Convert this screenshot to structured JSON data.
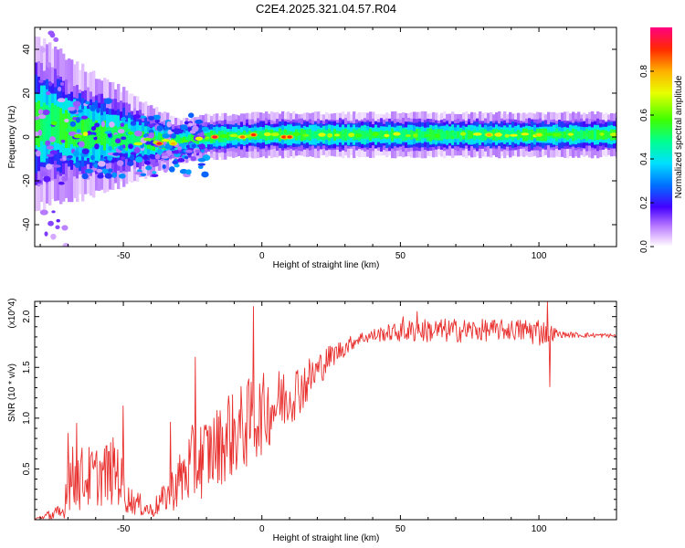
{
  "title": "C2E4.2025.321.04.57.R04",
  "chart_data": [
    {
      "type": "heatmap",
      "xlabel": "Height of straight line (km)",
      "ylabel": "Frequency (Hz)",
      "xlim": [
        -82,
        128
      ],
      "ylim": [
        -50,
        50
      ],
      "xticks": [
        -50,
        0,
        50,
        100
      ],
      "xticklabels": [
        "-50",
        "0",
        "50",
        "100"
      ],
      "yticks": [
        -40,
        -20,
        0,
        20,
        40
      ],
      "yticklabels": [
        "-40",
        "-20",
        "0",
        "20",
        "40"
      ],
      "colorbar": {
        "label": "Normalized spectral amplitude",
        "range": [
          0,
          1
        ],
        "ticks": [
          0.0,
          0.2,
          0.4,
          0.6,
          0.8
        ],
        "ticklabels": [
          "0.0",
          "0.2",
          "0.4",
          "0.6",
          "0.8"
        ]
      },
      "ridge": [
        {
          "x": -75,
          "f": 6
        },
        {
          "x": -70,
          "f": 3
        },
        {
          "x": -60,
          "f": 1
        },
        {
          "x": -50,
          "f": 0
        },
        {
          "x": -40,
          "f": -2
        },
        {
          "x": -30,
          "f": -2
        },
        {
          "x": -20,
          "f": 0
        },
        {
          "x": 0,
          "f": 1
        },
        {
          "x": 20,
          "f": 1
        },
        {
          "x": 50,
          "f": 1
        },
        {
          "x": 80,
          "f": 1
        },
        {
          "x": 100,
          "f": 1
        },
        {
          "x": 128,
          "f": 1
        }
      ],
      "peaks": [
        {
          "x": -37,
          "f": -3,
          "a": 0.95
        },
        {
          "x": -32,
          "f": -3,
          "a": 0.8
        },
        {
          "x": -17,
          "f": 0,
          "a": 0.95
        },
        {
          "x": -7,
          "f": 0,
          "a": 0.85
        },
        {
          "x": -3,
          "f": 1,
          "a": 0.9
        },
        {
          "x": 8,
          "f": 0,
          "a": 0.9
        },
        {
          "x": 10,
          "f": 0,
          "a": 0.9
        },
        {
          "x": 82,
          "f": 1,
          "a": 0.8
        },
        {
          "x": 100,
          "f": 1,
          "a": 0.75
        }
      ]
    },
    {
      "type": "line",
      "xlabel": "Height of straight line (km)",
      "ylabel": "SNR (10 * v/v)",
      "yscale_note": "(x10^4)",
      "xlim": [
        -82,
        128
      ],
      "ylim": [
        0,
        2.15
      ],
      "xticks": [
        -50,
        0,
        50,
        100
      ],
      "xticklabels": [
        "-50",
        "0",
        "50",
        "100"
      ],
      "yticks": [
        0.5,
        1.0,
        1.5,
        2.0
      ],
      "yticklabels": [
        "0.5",
        "1.0",
        "1.5",
        "2.0"
      ],
      "color": "#e8312f",
      "envelope": [
        {
          "x": -82,
          "base": 0.0,
          "amp": 0.02
        },
        {
          "x": -72,
          "base": 0.05,
          "amp": 0.1
        },
        {
          "x": -70,
          "base": 0.35,
          "amp": 0.35
        },
        {
          "x": -60,
          "base": 0.4,
          "amp": 0.3
        },
        {
          "x": -52,
          "base": 0.45,
          "amp": 0.35
        },
        {
          "x": -49,
          "base": 0.2,
          "amp": 0.15
        },
        {
          "x": -40,
          "base": 0.08,
          "amp": 0.08
        },
        {
          "x": -35,
          "base": 0.2,
          "amp": 0.15
        },
        {
          "x": -25,
          "base": 0.5,
          "amp": 0.4
        },
        {
          "x": -15,
          "base": 0.7,
          "amp": 0.4
        },
        {
          "x": -5,
          "base": 0.9,
          "amp": 0.45
        },
        {
          "x": 5,
          "base": 1.1,
          "amp": 0.35
        },
        {
          "x": 15,
          "base": 1.3,
          "amp": 0.25
        },
        {
          "x": 25,
          "base": 1.6,
          "amp": 0.12
        },
        {
          "x": 35,
          "base": 1.78,
          "amp": 0.06
        },
        {
          "x": 45,
          "base": 1.83,
          "amp": 0.08
        },
        {
          "x": 55,
          "base": 1.85,
          "amp": 0.12
        },
        {
          "x": 70,
          "base": 1.85,
          "amp": 0.12
        },
        {
          "x": 90,
          "base": 1.86,
          "amp": 0.1
        },
        {
          "x": 100,
          "base": 1.84,
          "amp": 0.15
        },
        {
          "x": 108,
          "base": 1.82,
          "amp": 0.03
        },
        {
          "x": 128,
          "base": 1.81,
          "amp": 0.02
        }
      ],
      "spikes": [
        {
          "x": -70,
          "y": 0.85
        },
        {
          "x": -67,
          "y": 0.95
        },
        {
          "x": -50,
          "y": 1.12
        },
        {
          "x": -33,
          "y": 0.96
        },
        {
          "x": -24,
          "y": 1.6
        },
        {
          "x": -12,
          "y": 1.22
        },
        {
          "x": -3,
          "y": 2.1
        },
        {
          "x": 7,
          "y": 1.38
        },
        {
          "x": 51,
          "y": 2.0
        },
        {
          "x": 56,
          "y": 2.05
        },
        {
          "x": 103,
          "y": 2.15
        },
        {
          "x": 104,
          "y": 1.31
        }
      ]
    }
  ]
}
